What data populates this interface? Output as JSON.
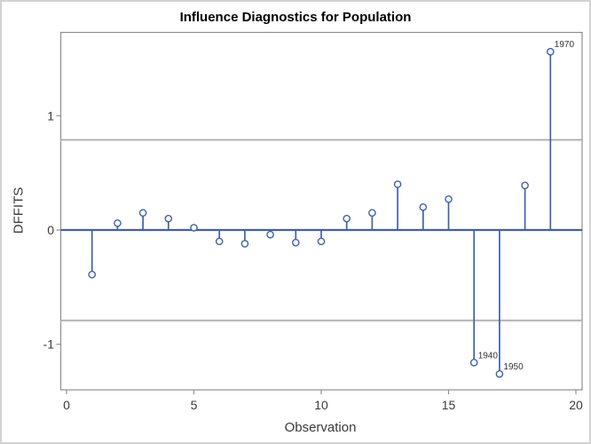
{
  "figure": {
    "kind": "statistical-graphic",
    "source_style": "SAS ODS graphics"
  },
  "chart_data": {
    "type": "scatter",
    "subtype": "needle-stem",
    "title": "Influence Diagnostics for Population",
    "xlabel": "Observation",
    "ylabel": "DFFITS",
    "xlim": [
      0,
      20
    ],
    "ylim": [
      -1.4,
      1.73
    ],
    "xticks": [
      0,
      5,
      10,
      15,
      20
    ],
    "yticks": [
      -1,
      0,
      1
    ],
    "grid": false,
    "legend": false,
    "baseline": 0,
    "reference_lines": {
      "values": [
        0.79,
        -0.79
      ],
      "color": "#a6a6a6"
    },
    "points": [
      {
        "obs": 1,
        "dffits": -0.39
      },
      {
        "obs": 2,
        "dffits": 0.06
      },
      {
        "obs": 3,
        "dffits": 0.15
      },
      {
        "obs": 4,
        "dffits": 0.1
      },
      {
        "obs": 5,
        "dffits": 0.02
      },
      {
        "obs": 6,
        "dffits": -0.1
      },
      {
        "obs": 7,
        "dffits": -0.12
      },
      {
        "obs": 8,
        "dffits": -0.04
      },
      {
        "obs": 9,
        "dffits": -0.11
      },
      {
        "obs": 10,
        "dffits": -0.1
      },
      {
        "obs": 11,
        "dffits": 0.1
      },
      {
        "obs": 12,
        "dffits": 0.15
      },
      {
        "obs": 13,
        "dffits": 0.4
      },
      {
        "obs": 14,
        "dffits": 0.2
      },
      {
        "obs": 15,
        "dffits": 0.27
      },
      {
        "obs": 16,
        "dffits": -1.16,
        "label": "1940"
      },
      {
        "obs": 17,
        "dffits": -1.26,
        "label": "1950"
      },
      {
        "obs": 18,
        "dffits": 0.39
      },
      {
        "obs": 19,
        "dffits": 1.56,
        "label": "1970"
      }
    ],
    "colors": {
      "stem": "#4060ac",
      "marker_fill": "#ffffff",
      "frame": "#8f8f8f",
      "reference": "#a6a6a6",
      "reference_highlight": "#dadada",
      "text": "#3a3a3a",
      "point_label": "#333333",
      "title": "#000000",
      "background": "#ffffff",
      "border": "#d2d2d2"
    }
  }
}
